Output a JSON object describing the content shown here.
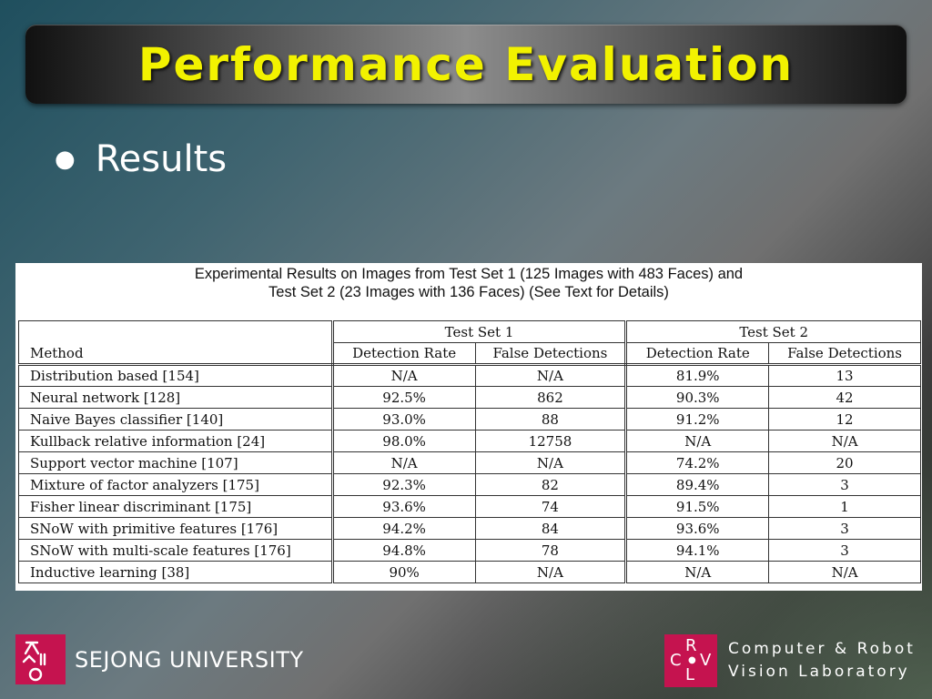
{
  "slide": {
    "title": "Performance Evaluation",
    "bullet": "Results"
  },
  "table": {
    "caption_line1": "Experimental Results on Images from Test Set 1 (125 Images with 483 Faces) and",
    "caption_line2": "Test Set 2 (23 Images with 136 Faces) (See Text for Details)",
    "group_headers": [
      "Test Set 1",
      "Test Set 2"
    ],
    "method_header": "Method",
    "sub_headers": [
      "Detection Rate",
      "False Detections",
      "Detection Rate",
      "False Detections"
    ],
    "rows": [
      [
        "Distribution based [154]",
        "N/A",
        "N/A",
        "81.9%",
        "13"
      ],
      [
        "Neural network [128]",
        "92.5%",
        "862",
        "90.3%",
        "42"
      ],
      [
        "Naive Bayes classifier [140]",
        "93.0%",
        "88",
        "91.2%",
        "12"
      ],
      [
        "Kullback relative information [24]",
        "98.0%",
        "12758",
        "N/A",
        "N/A"
      ],
      [
        "Support vector machine [107]",
        "N/A",
        "N/A",
        "74.2%",
        "20"
      ],
      [
        "Mixture of factor analyzers [175]",
        "92.3%",
        "82",
        "89.4%",
        "3"
      ],
      [
        "Fisher linear discriminant [175]",
        "93.6%",
        "74",
        "91.5%",
        "1"
      ],
      [
        "SNoW with primitive features [176]",
        "94.2%",
        "84",
        "93.6%",
        "3"
      ],
      [
        "SNoW with multi-scale features [176]",
        "94.8%",
        "78",
        "94.1%",
        "3"
      ],
      [
        "Inductive learning [38]",
        "90%",
        "N/A",
        "N/A",
        "N/A"
      ]
    ]
  },
  "footer": {
    "university": "SEJONG UNIVERSITY",
    "lab_line1": "Computer & Robot",
    "lab_line2": "Vision Laboratory",
    "lab_logo_letters": [
      "C",
      "R",
      "V",
      "L"
    ]
  },
  "colors": {
    "title_text": "#f2f200",
    "logo_bg": "#c5134f"
  }
}
